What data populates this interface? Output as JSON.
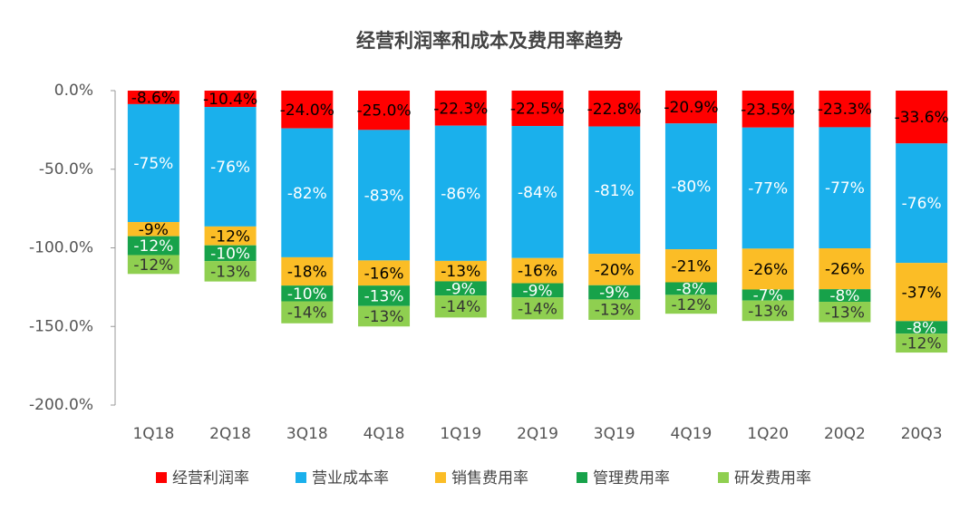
{
  "chart_data": {
    "type": "bar",
    "stacked": true,
    "title": "经营利润率和成本及费用率趋势",
    "categories": [
      "1Q18",
      "2Q18",
      "3Q18",
      "4Q18",
      "1Q19",
      "2Q19",
      "3Q19",
      "4Q19",
      "1Q20",
      "20Q2",
      "20Q3"
    ],
    "ylim": [
      -200,
      0
    ],
    "yticks": [
      {
        "value": 0,
        "label": "0.0%"
      },
      {
        "value": -50,
        "label": "-50.0%"
      },
      {
        "value": -100,
        "label": "-100.0%"
      },
      {
        "value": -150,
        "label": "-150.0%"
      },
      {
        "value": -200,
        "label": "-200.0%"
      }
    ],
    "legend": "bottom",
    "series": [
      {
        "name": "经营利润率",
        "color": "#ff0000",
        "values": [
          -8.6,
          -10.4,
          -24.0,
          -25.0,
          -22.3,
          -22.5,
          -22.8,
          -20.9,
          -23.5,
          -23.3,
          -33.6
        ],
        "value_labels": [
          "-8.6%",
          "-10.4%",
          "-24.0%",
          "-25.0%",
          "-22.3%",
          "-22.5%",
          "-22.8%",
          "-20.9%",
          "-23.5%",
          "-23.3%",
          "-33.6%"
        ]
      },
      {
        "name": "营业成本率",
        "color": "#1ab0ec",
        "values": [
          -75,
          -76,
          -82,
          -83,
          -86,
          -84,
          -81,
          -80,
          -77,
          -77,
          -76
        ],
        "value_labels": [
          "-75%",
          "-76%",
          "-82%",
          "-83%",
          "-86%",
          "-84%",
          "-81%",
          "-80%",
          "-77%",
          "-77%",
          "-76%"
        ]
      },
      {
        "name": "销售费用率",
        "color": "#fbbd26",
        "values": [
          -9,
          -12,
          -18,
          -16,
          -13,
          -16,
          -20,
          -21,
          -26,
          -26,
          -37
        ],
        "value_labels": [
          "-9%",
          "-12%",
          "-18%",
          "-16%",
          "-13%",
          "-16%",
          "-20%",
          "-21%",
          "-26%",
          "-26%",
          "-37%"
        ]
      },
      {
        "name": "管理费用率",
        "color": "#17a24a",
        "values": [
          -12,
          -10,
          -10,
          -13,
          -9,
          -9,
          -9,
          -8,
          -7,
          -8,
          -8
        ],
        "value_labels": [
          "-12%",
          "-10%",
          "-10%",
          "-13%",
          "-9%",
          "-9%",
          "-9%",
          "-8%",
          "-7%",
          "-8%",
          "-8%"
        ]
      },
      {
        "name": "研发费用率",
        "color": "#8fcf50",
        "values": [
          -12,
          -13,
          -14,
          -13,
          -14,
          -14,
          -13,
          -12,
          -13,
          -13,
          -12
        ],
        "value_labels": [
          "-12%",
          "-13%",
          "-14%",
          "-13%",
          "-14%",
          "-14%",
          "-13%",
          "-12%",
          "-13%",
          "-13%",
          "-12%"
        ]
      }
    ]
  }
}
